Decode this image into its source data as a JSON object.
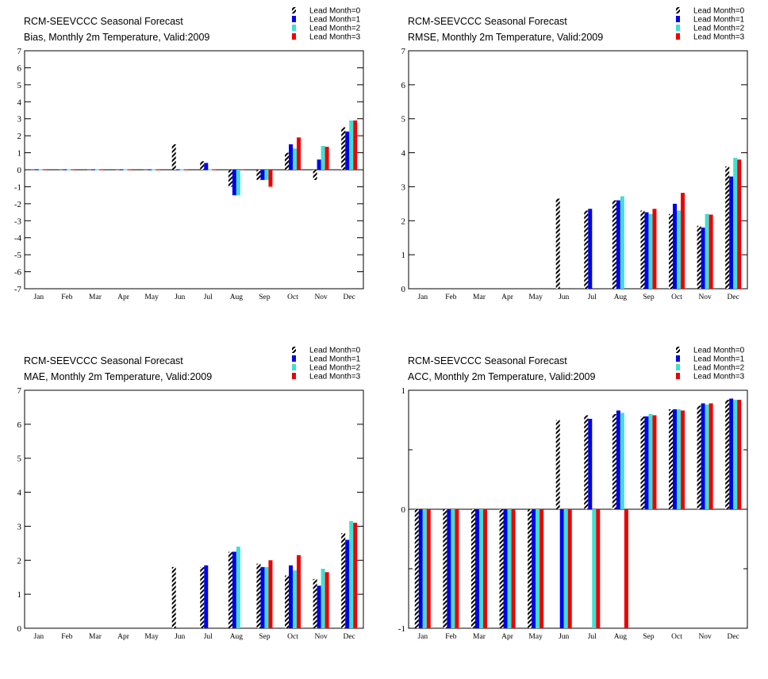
{
  "figure": {
    "suptitle": "RCM-SEEVCCC Seasonal Forecast",
    "legend_position": "top-right",
    "series": [
      {
        "name": "Lead Month=0",
        "color": "#000000",
        "pattern": "hatched"
      },
      {
        "name": "Lead Month=1",
        "color": "#0000ee"
      },
      {
        "name": "Lead Month=2",
        "color": "#40e0d0"
      },
      {
        "name": "Lead Month=3",
        "color": "#ee0000"
      }
    ]
  },
  "chart_data": [
    {
      "type": "bar",
      "title": "RCM-SEEVCCC Seasonal Forecast",
      "subtitle": "Bias, Monthly 2m Temperature, Valid:2009",
      "categories": [
        "Jan",
        "Feb",
        "Mar",
        "Apr",
        "May",
        "Jun",
        "Jul",
        "Aug",
        "Sep",
        "Oct",
        "Nov",
        "Dec"
      ],
      "ylim": [
        -7,
        7
      ],
      "yticks": [
        "-7",
        "-6",
        "-5",
        "-4",
        "-3",
        "-2",
        "-1",
        "0",
        "1",
        "2",
        "3",
        "4",
        "5",
        "6",
        "7"
      ],
      "grid": false,
      "series": [
        {
          "name": "Lead Month=0",
          "values": [
            0,
            0,
            0,
            0,
            0,
            1.5,
            0.5,
            -1.0,
            -0.6,
            1.0,
            -0.6,
            2.5
          ]
        },
        {
          "name": "Lead Month=1",
          "values": [
            0,
            0,
            0,
            0,
            0,
            0,
            0.4,
            -1.5,
            -0.6,
            1.5,
            0.6,
            2.25
          ]
        },
        {
          "name": "Lead Month=2",
          "values": [
            0,
            0,
            0,
            0,
            0,
            0,
            0,
            -1.5,
            -0.6,
            1.25,
            1.4,
            2.9
          ]
        },
        {
          "name": "Lead Month=3",
          "values": [
            0,
            0,
            0,
            0,
            0,
            0,
            0,
            0,
            -1.0,
            1.9,
            1.35,
            2.9
          ]
        }
      ]
    },
    {
      "type": "bar",
      "title": "RCM-SEEVCCC Seasonal Forecast",
      "subtitle": "RMSE, Monthly 2m Temperature, Valid:2009",
      "categories": [
        "Jan",
        "Feb",
        "Mar",
        "Apr",
        "May",
        "Jun",
        "Jul",
        "Aug",
        "Sep",
        "Oct",
        "Nov",
        "Dec"
      ],
      "ylim": [
        0,
        7
      ],
      "yticks": [
        "0",
        "1",
        "2",
        "3",
        "4",
        "5",
        "6",
        "7"
      ],
      "grid": false,
      "series": [
        {
          "name": "Lead Month=0",
          "values": [
            null,
            null,
            null,
            null,
            null,
            2.65,
            2.3,
            2.6,
            2.3,
            2.2,
            1.85,
            3.6
          ]
        },
        {
          "name": "Lead Month=1",
          "values": [
            null,
            null,
            null,
            null,
            null,
            null,
            2.35,
            2.6,
            2.25,
            2.5,
            1.8,
            3.3
          ]
        },
        {
          "name": "Lead Month=2",
          "values": [
            null,
            null,
            null,
            null,
            null,
            null,
            null,
            2.72,
            2.2,
            2.3,
            2.2,
            3.85
          ]
        },
        {
          "name": "Lead Month=3",
          "values": [
            null,
            null,
            null,
            null,
            null,
            null,
            null,
            null,
            2.35,
            2.82,
            2.18,
            3.8
          ]
        }
      ]
    },
    {
      "type": "bar",
      "title": "RCM-SEEVCCC Seasonal Forecast",
      "subtitle": "MAE, Monthly 2m Temperature, Valid:2009",
      "categories": [
        "Jan",
        "Feb",
        "Mar",
        "Apr",
        "May",
        "Jun",
        "Jul",
        "Aug",
        "Sep",
        "Oct",
        "Nov",
        "Dec"
      ],
      "ylim": [
        0,
        7
      ],
      "yticks": [
        "0",
        "1",
        "2",
        "3",
        "4",
        "5",
        "6",
        "7"
      ],
      "grid": false,
      "series": [
        {
          "name": "Lead Month=0",
          "values": [
            null,
            null,
            null,
            null,
            null,
            1.8,
            1.8,
            2.25,
            1.9,
            1.55,
            1.45,
            2.8
          ]
        },
        {
          "name": "Lead Month=1",
          "values": [
            null,
            null,
            null,
            null,
            null,
            null,
            1.85,
            2.25,
            1.8,
            1.85,
            1.25,
            2.6
          ]
        },
        {
          "name": "Lead Month=2",
          "values": [
            null,
            null,
            null,
            null,
            null,
            null,
            null,
            2.4,
            1.8,
            1.7,
            1.75,
            3.15
          ]
        },
        {
          "name": "Lead Month=3",
          "values": [
            null,
            null,
            null,
            null,
            null,
            null,
            null,
            null,
            2.0,
            2.15,
            1.65,
            3.1
          ]
        }
      ]
    },
    {
      "type": "bar",
      "title": "RCM-SEEVCCC Seasonal Forecast",
      "subtitle": "ACC, Monthly 2m Temperature, Valid:2009",
      "categories": [
        "Jan",
        "Feb",
        "Mar",
        "Apr",
        "May",
        "Jun",
        "Jul",
        "Aug",
        "Sep",
        "Oct",
        "Nov",
        "Dec"
      ],
      "ylim": [
        -1,
        1
      ],
      "yticks": [
        "-1",
        "0",
        "1"
      ],
      "grid": false,
      "series": [
        {
          "name": "Lead Month=0",
          "values": [
            -1,
            -1,
            -1,
            -1,
            -1,
            0.75,
            0.79,
            0.8,
            0.78,
            0.84,
            0.87,
            0.92
          ]
        },
        {
          "name": "Lead Month=1",
          "values": [
            -1,
            -1,
            -1,
            -1,
            -1,
            -1,
            0.76,
            0.83,
            0.78,
            0.84,
            0.89,
            0.93
          ]
        },
        {
          "name": "Lead Month=2",
          "values": [
            -1,
            -1,
            -1,
            -1,
            -1,
            -1,
            -1,
            0.81,
            0.8,
            0.84,
            0.88,
            0.92
          ]
        },
        {
          "name": "Lead Month=3",
          "values": [
            -1,
            -1,
            -1,
            -1,
            -1,
            -1,
            -1,
            -1,
            0.79,
            0.83,
            0.89,
            0.92
          ]
        }
      ]
    }
  ]
}
